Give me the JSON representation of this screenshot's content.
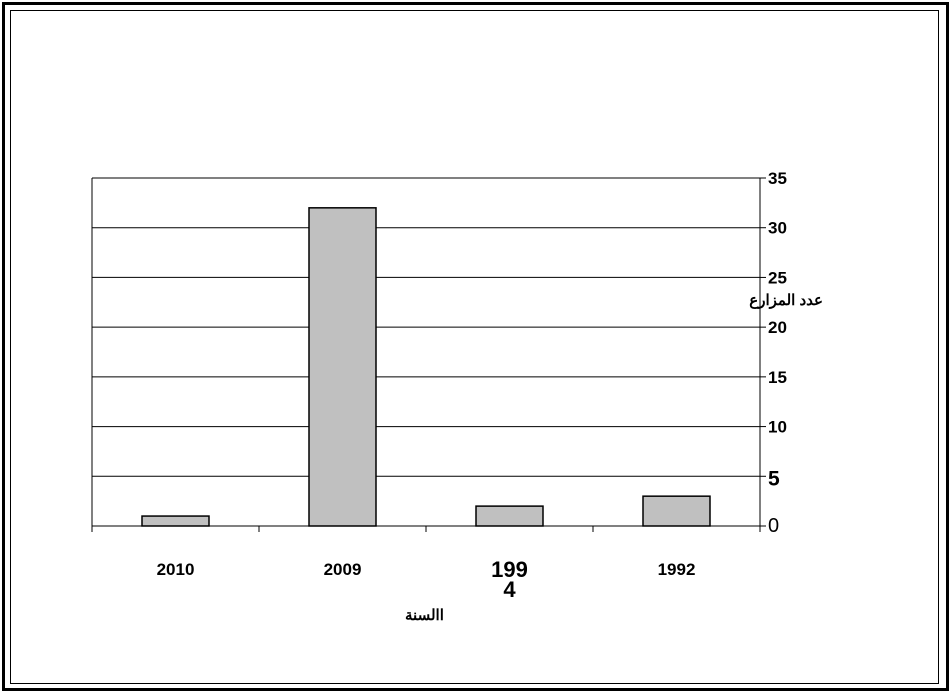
{
  "chart_data": {
    "type": "bar",
    "categories": [
      "2010",
      "2009",
      "199\n4",
      "1992"
    ],
    "category_labels_display": [
      [
        "2010"
      ],
      [
        "2009"
      ],
      [
        "199",
        "4"
      ],
      [
        "1992"
      ]
    ],
    "values": [
      1,
      32,
      2,
      3
    ],
    "ylabel": "عدد المزارع",
    "xlabel": "االسنة",
    "ylim": [
      0,
      35
    ],
    "yticks": [
      "0",
      "5",
      "10",
      "15",
      "20",
      "25",
      "30",
      "35"
    ],
    "y_axis_side": "right",
    "grid": true,
    "bar_color": "#c0c0c0",
    "bar_edge_color": "#000000"
  }
}
